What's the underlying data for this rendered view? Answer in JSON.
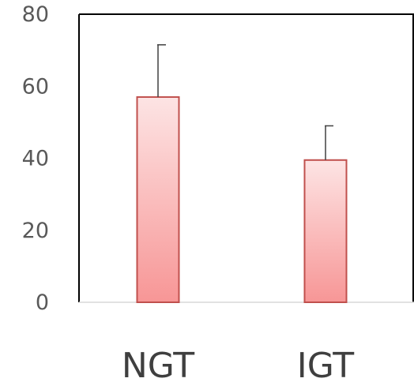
{
  "chart_data": {
    "type": "bar",
    "categories": [
      "NGT",
      "IGT"
    ],
    "values": [
      57,
      39.5
    ],
    "error_bars": [
      14.5,
      9.5
    ],
    "ylim": [
      0,
      80
    ],
    "yticks": [
      0,
      20,
      40,
      60,
      80
    ],
    "ytick_labels": [
      "0",
      "20",
      "40",
      "60",
      "80"
    ],
    "grid": false,
    "legend": "none",
    "colors": {
      "bar_top": "#fde4e4",
      "bar_bottom": "#f79696",
      "bar_border": "#c0504d",
      "error_bar": "#404040",
      "axis": "#000000"
    }
  }
}
